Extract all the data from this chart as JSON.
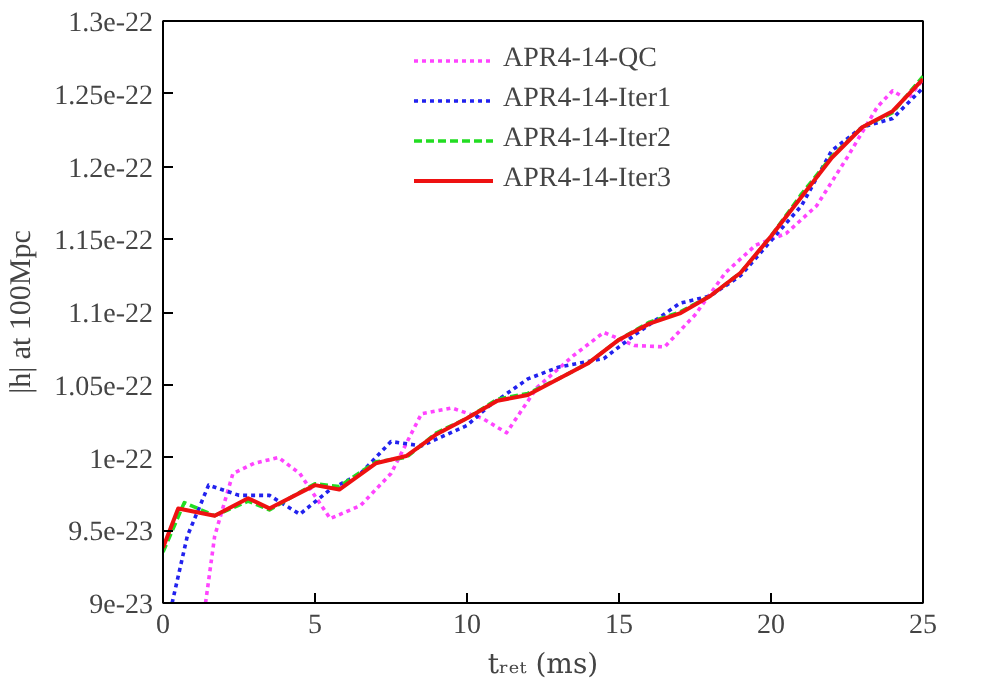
{
  "chart_data": {
    "type": "line",
    "xlabel": "tᵣₑₜ (ms)",
    "ylabel": "|h| at 100Mpc",
    "xlim": [
      0,
      25
    ],
    "xticks": [
      0,
      5,
      10,
      15,
      20,
      25
    ],
    "ylim": [
      9e-23,
      1.3e-22
    ],
    "yticks": [
      {
        "value": 9e-23,
        "label": "9e-23"
      },
      {
        "value": 9.5e-23,
        "label": "9.5e-23"
      },
      {
        "value": 1e-22,
        "label": "1e-22"
      },
      {
        "value": 1.05e-22,
        "label": "1.05e-22"
      },
      {
        "value": 1.1e-22,
        "label": "1.1e-22"
      },
      {
        "value": 1.15e-22,
        "label": "1.15e-22"
      },
      {
        "value": 1.2e-22,
        "label": "1.2e-22"
      },
      {
        "value": 1.25e-22,
        "label": "1.25e-22"
      },
      {
        "value": 1.3e-22,
        "label": "1.3e-22"
      }
    ],
    "grid": false,
    "legend": "top",
    "series": [
      {
        "name": "APR4-14-QC",
        "color": "#ff44ff",
        "line_style": "dotted",
        "x": [
          1.4,
          1.7,
          2.3,
          3,
          3.8,
          4.5,
          5.5,
          6.5,
          7.5,
          8.5,
          9.5,
          10.5,
          11.3,
          12.3,
          13.5,
          14.5,
          15.5,
          16.5,
          17.5,
          18.5,
          19.5,
          20.5,
          21.5,
          22.5,
          23.5,
          24,
          24.5,
          25
        ],
        "values": [
          9e-23,
          9.46e-23,
          9.89e-23,
          9.96e-23,
          1e-22,
          9.89e-23,
          9.58e-23,
          9.67e-23,
          9.89e-23,
          1.03e-22,
          1.034e-22,
          1.027e-22,
          1.017e-22,
          1.048e-22,
          1.07e-22,
          1.086e-22,
          1.077e-22,
          1.076e-22,
          1.098e-22,
          1.127e-22,
          1.146e-22,
          1.154e-22,
          1.173e-22,
          1.206e-22,
          1.241e-22,
          1.252e-22,
          1.246e-22,
          1.26e-22
        ]
      },
      {
        "name": "APR4-14-Iter1",
        "color": "#2222ee",
        "line_style": "dotted",
        "x": [
          0.3,
          0.8,
          1.5,
          2.5,
          3.5,
          4.5,
          5.5,
          6.5,
          7.5,
          8.5,
          10,
          10.7,
          12,
          13,
          14.5,
          15.5,
          17,
          18,
          19,
          20,
          21,
          22,
          23,
          24,
          25
        ],
        "values": [
          9e-23,
          9.46e-23,
          9.81e-23,
          9.74e-23,
          9.74e-23,
          9.61e-23,
          9.78e-23,
          9.89e-23,
          1.011e-22,
          1.008e-22,
          1.022e-22,
          1.035e-22,
          1.054e-22,
          1.062e-22,
          1.068e-22,
          1.084e-22,
          1.106e-22,
          1.111e-22,
          1.125e-22,
          1.149e-22,
          1.173e-22,
          1.211e-22,
          1.227e-22,
          1.233e-22,
          1.254e-22
        ]
      },
      {
        "name": "APR4-14-Iter2",
        "color": "#22dd22",
        "line_style": "dashed",
        "x": [
          0,
          0.7,
          1.7,
          2.8,
          3.5,
          5,
          5.8,
          7,
          8,
          9,
          10,
          11,
          12,
          13,
          14,
          15,
          16,
          17,
          18,
          19,
          20,
          21,
          22,
          23,
          24,
          25
        ],
        "values": [
          9.35e-23,
          9.69e-23,
          9.6e-23,
          9.7e-23,
          9.64e-23,
          9.82e-23,
          9.8e-23,
          9.97e-23,
          1e-22,
          1.017e-22,
          1.027e-22,
          1.04e-22,
          1.044e-22,
          1.054e-22,
          1.065e-22,
          1.081e-22,
          1.093e-22,
          1.1e-22,
          1.111e-22,
          1.127e-22,
          1.152e-22,
          1.181e-22,
          1.207e-22,
          1.227e-22,
          1.237e-22,
          1.262e-22
        ]
      },
      {
        "name": "APR4-14-Iter3",
        "color": "#ee1111",
        "line_style": "solid",
        "x": [
          0,
          0.5,
          1.7,
          2.8,
          3.5,
          5,
          5.8,
          7,
          8,
          9,
          10,
          11,
          12,
          13,
          14,
          15,
          16,
          17,
          18,
          19,
          20,
          21,
          22,
          23,
          24,
          25
        ],
        "values": [
          9.38e-23,
          9.65e-23,
          9.6e-23,
          9.72e-23,
          9.65e-23,
          9.81e-23,
          9.78e-23,
          9.96e-23,
          1.001e-22,
          1.016e-22,
          1.027e-22,
          1.039e-22,
          1.043e-22,
          1.054e-22,
          1.065e-22,
          1.081e-22,
          1.092e-22,
          1.099e-22,
          1.111e-22,
          1.127e-22,
          1.152e-22,
          1.179e-22,
          1.206e-22,
          1.227e-22,
          1.238e-22,
          1.26e-22
        ]
      }
    ]
  }
}
